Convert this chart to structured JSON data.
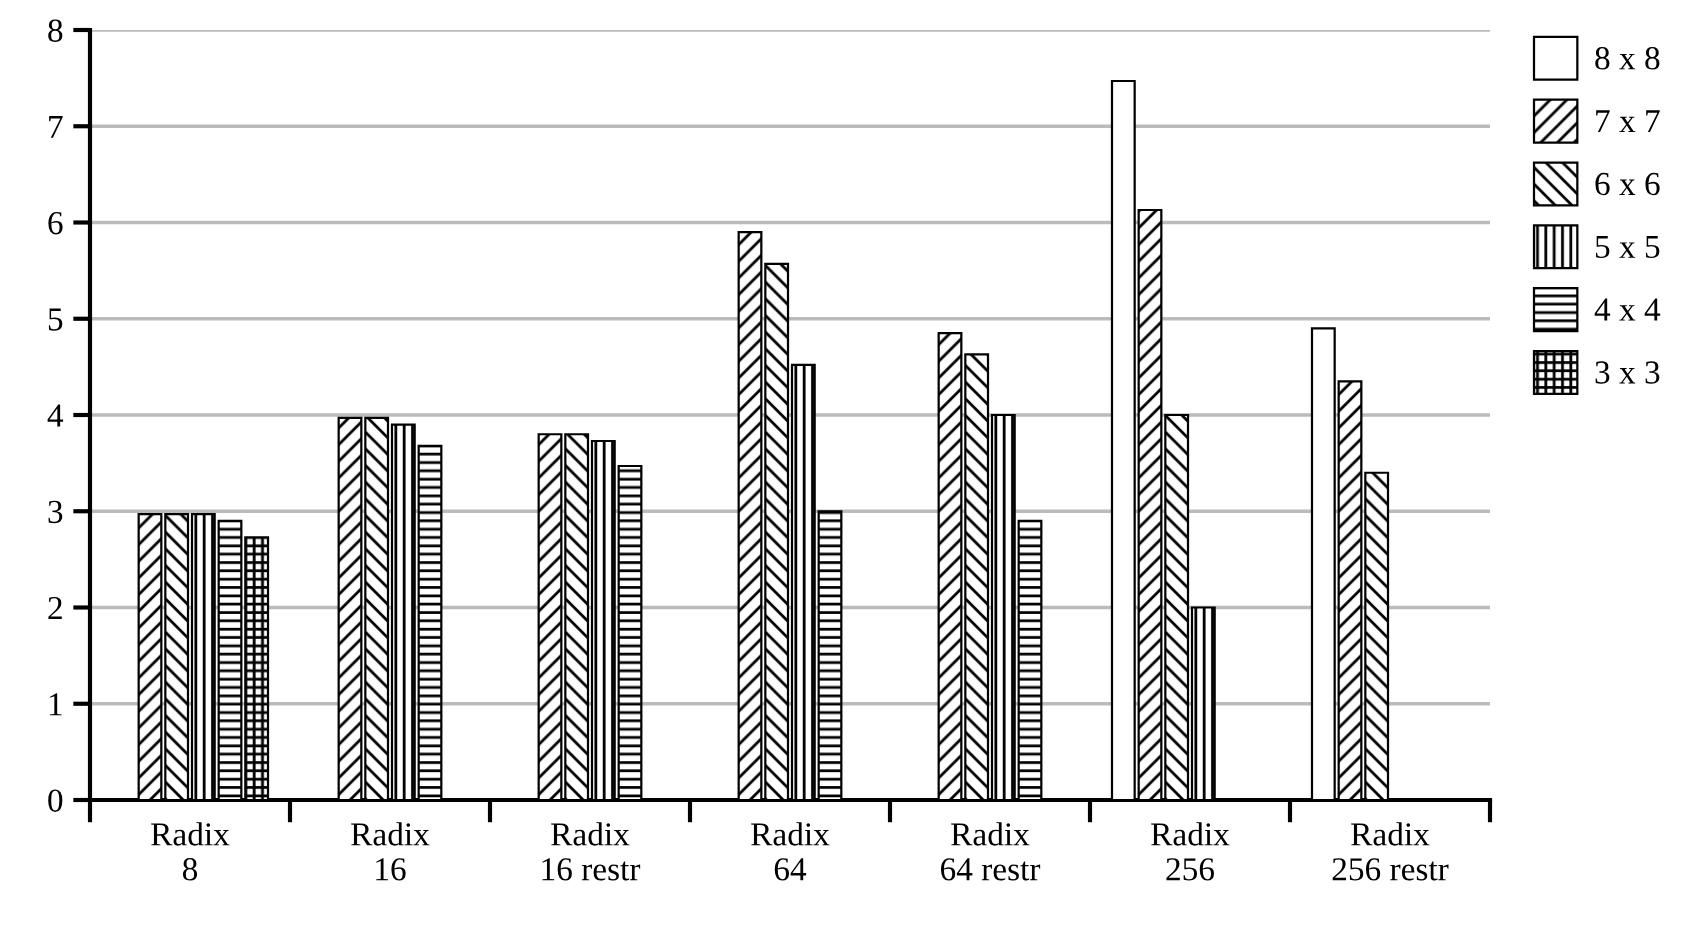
{
  "chart_data": {
    "type": "bar",
    "categories": [
      "Radix\n8",
      "Radix\n16",
      "Radix\n16 restr",
      "Radix\n64",
      "Radix\n64 restr",
      "Radix\n256",
      "Radix\n256 restr"
    ],
    "series": [
      {
        "name": "8 x 8",
        "color": "#ffffff",
        "values": [
          null,
          null,
          null,
          null,
          null,
          7.47,
          4.9
        ]
      },
      {
        "name": "7 x 7",
        "color": "#000000",
        "values": [
          2.97,
          3.97,
          3.8,
          5.9,
          4.85,
          6.13,
          4.35
        ]
      },
      {
        "name": "6 x 6",
        "color": "#000000",
        "values": [
          2.97,
          3.97,
          3.8,
          5.57,
          4.63,
          4.0,
          3.4
        ]
      },
      {
        "name": "5 x 5",
        "color": "#000000",
        "values": [
          2.97,
          3.9,
          3.73,
          4.52,
          4.0,
          2.0,
          null
        ]
      },
      {
        "name": "4 x 4",
        "color": "#000000",
        "values": [
          2.9,
          3.68,
          3.47,
          3.0,
          2.9,
          null,
          null
        ]
      },
      {
        "name": "3 x 3",
        "color": "#000000",
        "values": [
          2.73,
          null,
          null,
          null,
          null,
          null,
          null
        ]
      }
    ],
    "ylim": [
      0,
      8
    ],
    "yticks": [
      0,
      1,
      2,
      3,
      4,
      5,
      6,
      7,
      8
    ],
    "grid": "y",
    "legend": "right"
  }
}
